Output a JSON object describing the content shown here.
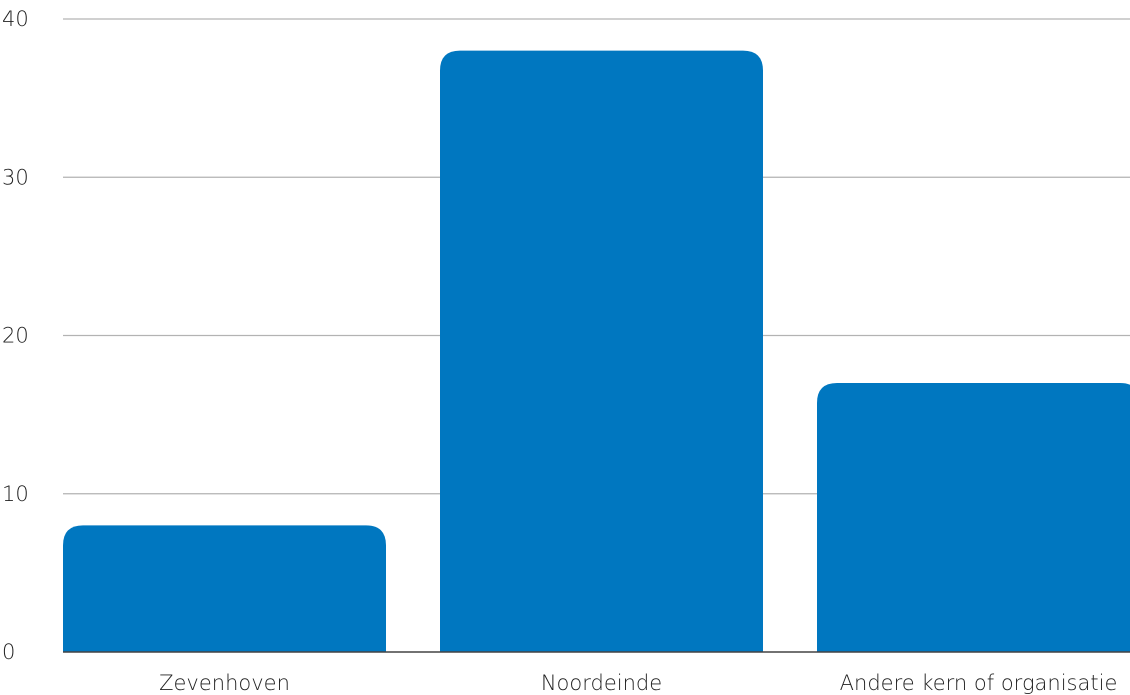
{
  "chart_data": {
    "type": "bar",
    "title": "",
    "xlabel": "",
    "ylabel": "",
    "categories": [
      "Zevenhoven",
      "Noordeinde",
      "Andere kern of organisatie"
    ],
    "values": [
      8,
      38,
      17
    ],
    "ylim": [
      0,
      40
    ],
    "yticks": [
      0,
      10,
      20,
      30,
      40
    ],
    "grid": true,
    "bar_color": "#0077c0"
  }
}
